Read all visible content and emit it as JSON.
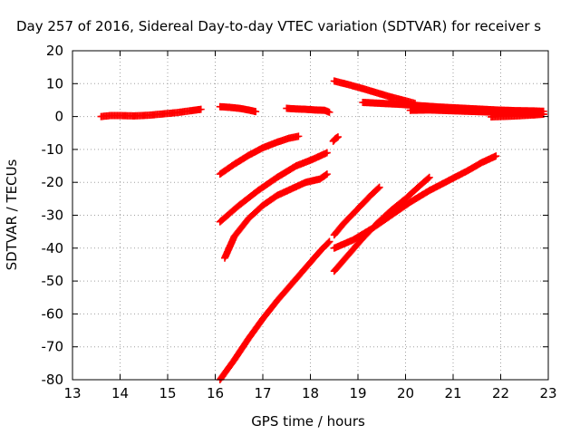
{
  "chart_data": {
    "type": "scatter",
    "title": "Day 257 of 2016, Sidereal Day-to-day VTEC variation (SDTVAR) for receiver s",
    "xlabel": "GPS time / hours",
    "ylabel": "SDTVAR / TECUs",
    "xlim": [
      13,
      23
    ],
    "ylim": [
      -80,
      20
    ],
    "x_ticks": [
      "13",
      "14",
      "15",
      "16",
      "17",
      "18",
      "19",
      "20",
      "21",
      "22",
      "23"
    ],
    "y_ticks": [
      "20",
      "10",
      "0",
      "-10",
      "-20",
      "-30",
      "-40",
      "-50",
      "-60",
      "-70",
      "-80"
    ],
    "grid": true,
    "marker": "plus",
    "color": "#ff0000",
    "series": [
      {
        "x": [
          13.6,
          13.8,
          14.0,
          14.3,
          14.6,
          14.9,
          15.2,
          15.5,
          15.7
        ],
        "y": [
          0.0,
          0.3,
          0.3,
          0.2,
          0.4,
          0.8,
          1.2,
          1.8,
          2.2
        ]
      },
      {
        "x": [
          16.1,
          16.3,
          16.5,
          16.7,
          16.85
        ],
        "y": [
          3.0,
          2.8,
          2.5,
          2.0,
          1.5
        ]
      },
      {
        "x": [
          17.5,
          17.7,
          17.9,
          18.1,
          18.3,
          18.4
        ],
        "y": [
          2.5,
          2.3,
          2.2,
          2.0,
          1.9,
          1.3
        ]
      },
      {
        "x": [
          18.5,
          18.8,
          19.1,
          19.4,
          19.7,
          20.0,
          20.2
        ],
        "y": [
          10.8,
          9.7,
          8.5,
          7.2,
          5.9,
          4.8,
          4.0
        ]
      },
      {
        "x": [
          19.1,
          19.5,
          19.9,
          20.3,
          20.7,
          21.1,
          21.5,
          21.9,
          22.3,
          22.7,
          22.9
        ],
        "y": [
          4.3,
          4.0,
          3.7,
          3.3,
          2.9,
          2.6,
          2.3,
          2.0,
          1.8,
          1.7,
          1.6
        ]
      },
      {
        "x": [
          20.1,
          20.5,
          20.9,
          21.3,
          21.7,
          22.1,
          22.5,
          22.9
        ],
        "y": [
          1.9,
          2.0,
          1.8,
          1.6,
          1.4,
          1.1,
          0.9,
          0.7
        ]
      },
      {
        "x": [
          21.8,
          22.2,
          22.6,
          22.9
        ],
        "y": [
          -0.1,
          0.1,
          0.4,
          0.7
        ]
      },
      {
        "x": [
          16.1,
          16.4,
          16.7,
          17.0,
          17.3,
          17.55,
          17.75
        ],
        "y": [
          -17.5,
          -14.5,
          -11.8,
          -9.5,
          -7.8,
          -6.6,
          -6.0
        ]
      },
      {
        "x": [
          18.48,
          18.52,
          18.58
        ],
        "y": [
          -7.5,
          -6.8,
          -6.2
        ]
      },
      {
        "x": [
          16.1,
          16.5,
          16.9,
          17.3,
          17.7,
          18.05,
          18.35
        ],
        "y": [
          -32.0,
          -27.0,
          -22.5,
          -18.5,
          -15.0,
          -13.0,
          -11.0
        ]
      },
      {
        "x": [
          16.2,
          16.4,
          16.7,
          17.0,
          17.3,
          17.6,
          17.9,
          18.2,
          18.35
        ],
        "y": [
          -43.0,
          -36.5,
          -31.0,
          -27.0,
          -24.0,
          -22.0,
          -20.0,
          -19.0,
          -17.5
        ]
      },
      {
        "x": [
          16.1,
          16.4,
          16.7,
          17.0,
          17.3,
          17.6,
          17.9,
          18.2,
          18.4
        ],
        "y": [
          -80.0,
          -74.0,
          -67.5,
          -61.5,
          -56.0,
          -51.0,
          -46.0,
          -41.0,
          -38.0
        ]
      },
      {
        "x": [
          18.5,
          18.8,
          19.1,
          19.4,
          19.7,
          20.0,
          20.3,
          20.5
        ],
        "y": [
          -47.0,
          -42.0,
          -37.0,
          -32.5,
          -28.5,
          -25.0,
          -21.0,
          -18.5
        ]
      },
      {
        "x": [
          18.5,
          18.9,
          19.3,
          19.7,
          20.1,
          20.5,
          20.9,
          21.3,
          21.6,
          21.9
        ],
        "y": [
          -40.0,
          -37.5,
          -34.0,
          -30.0,
          -26.0,
          -22.5,
          -19.5,
          -16.5,
          -14.0,
          -12.0
        ]
      },
      {
        "x": [
          18.5,
          18.7,
          18.9,
          19.1,
          19.3,
          19.45
        ],
        "y": [
          -36.0,
          -32.5,
          -29.5,
          -26.5,
          -23.5,
          -21.5
        ]
      }
    ]
  }
}
